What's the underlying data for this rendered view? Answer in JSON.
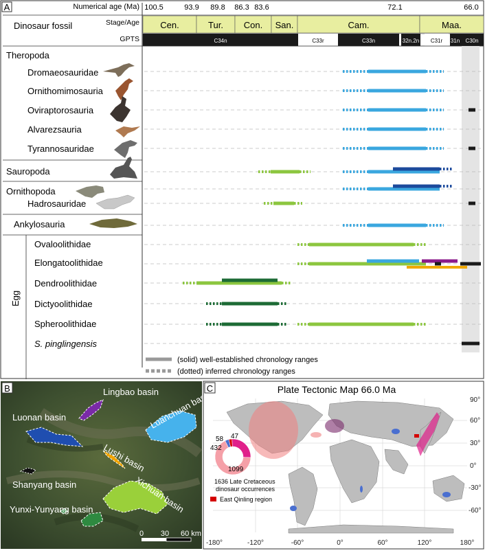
{
  "panel_a": {
    "label": "A",
    "age_header": "Numerical age (Ma)",
    "ages": [
      "100.5",
      "93.9",
      "89.8",
      "86.3",
      "83.6",
      "72.1",
      "66.0"
    ],
    "stage_header": "Stage/Age",
    "gpts_header": "GPTS",
    "row_header": "Dinosaur fossil",
    "stages": [
      "Cen.",
      "Tur.",
      "Con.",
      "San.",
      "Cam.",
      "Maa."
    ],
    "gpts": [
      "C34n",
      "C33r",
      "C33n",
      "32n.2n",
      "C31r",
      "31n",
      "C30n"
    ],
    "groups": {
      "theropoda": "Theropoda",
      "sauropoda": "Sauropoda",
      "ornithopoda": "Ornithopoda",
      "ankylosauria": "Ankylosauria",
      "egg": "Egg"
    },
    "taxa": [
      "Dromaeosauridae",
      "Ornithomimosauria",
      "Oviraptorosauria",
      "Alvarezsauria",
      "Tyrannosauridae",
      "Hadrosauridae",
      "Ovaloolithidae",
      "Elongatoolithidae",
      "Dendroolithidae",
      "Dictyoolithidae",
      "Spheroolithidae",
      "S. pinglingensis"
    ],
    "legend": {
      "solid": "(solid) well-established chronology ranges",
      "dotted": "(dotted) inferred chronology ranges"
    },
    "colors": {
      "light_blue": "#3aa7df",
      "dark_blue": "#1c4a9c",
      "light_green": "#8cc63f",
      "dark_green": "#1d6b35",
      "purple": "#8b1a8b",
      "orange": "#f0a800",
      "black": "#1a1a1a",
      "stage_fill": "#e8eea0"
    }
  },
  "panel_b": {
    "label": "B",
    "basins": [
      "Lingbao basin",
      "Luanchuan basin",
      "Luonan basin",
      "Lushi basin",
      "Shanyang basin",
      "Xichuan basin",
      "Yunxi-Yunyang basin"
    ],
    "scale": [
      "0",
      "30",
      "60 km"
    ]
  },
  "panel_c": {
    "label": "C",
    "title": "Plate Tectonic Map 66.0 Ma",
    "lat_labels": [
      "90°",
      "60°",
      "30°",
      "0°",
      "-30°",
      "-60°"
    ],
    "lon_labels": [
      "-180°",
      "-120°",
      "-60°",
      "0°",
      "60°",
      "120°",
      "180°"
    ],
    "donut_values": [
      "58",
      "47",
      "432",
      "1099"
    ],
    "caption_line1": "1636 Late Cretaceous",
    "caption_line2": "dinosaur occurrences",
    "legend_label": "East Qinling region"
  }
}
